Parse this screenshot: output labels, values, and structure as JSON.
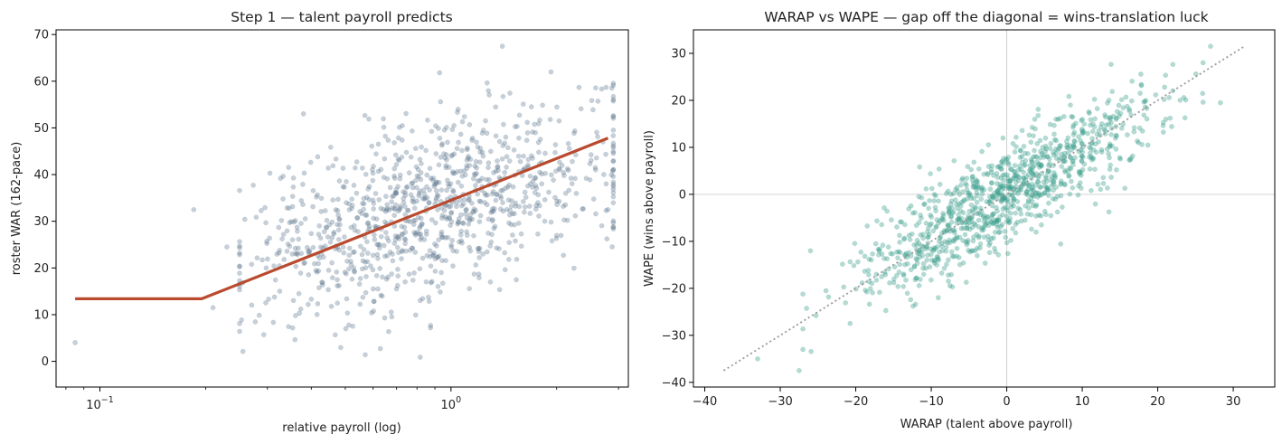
{
  "colors": {
    "left_points": "#5f7890",
    "fit_line": "#b94a2e",
    "right_points": "#3a9e8c",
    "diagonal": "#999999",
    "zero_lines": "#cccccc"
  },
  "chart_data": [
    {
      "type": "scatter",
      "title": "Step 1 — talent payroll predicts",
      "xlabel": "relative payroll (log)",
      "ylabel": "roster WAR (162-pace)",
      "xscale": "log",
      "xlim": [
        0.075,
        3.2
      ],
      "ylim": [
        -5.5,
        71
      ],
      "xticks": [
        {
          "value": 0.1,
          "base": "10",
          "exp": "−1"
        },
        {
          "value": 1,
          "base": "10",
          "exp": "0"
        }
      ],
      "yticks": [
        0,
        10,
        20,
        30,
        40,
        50,
        60,
        70
      ],
      "yticks_text": [
        "0",
        "10",
        "20",
        "30",
        "40",
        "50",
        "60",
        "70"
      ],
      "grid": false,
      "series": [
        {
          "kind": "points",
          "n": 1000,
          "x_center": 0.9,
          "x_spread": 0.5,
          "slope_per_log10": 21.0,
          "intercept": 33.5,
          "noise_sd": 9.5,
          "seed": 7,
          "outliers": [
            [
              0.085,
              4
            ],
            [
              0.185,
              32.5
            ],
            [
              0.23,
              24.5
            ],
            [
              0.21,
              11.5
            ],
            [
              2.8,
              32.5
            ],
            [
              1.4,
              67.5
            ],
            [
              0.38,
              53
            ]
          ]
        },
        {
          "kind": "line",
          "points": [
            [
              0.085,
              13.4
            ],
            [
              0.195,
              13.4
            ],
            [
              2.8,
              47.8
            ]
          ]
        }
      ]
    },
    {
      "type": "scatter",
      "title": "WARAP vs WAPE — gap off the diagonal = wins-translation luck",
      "xlabel": "WARAP (talent above payroll)",
      "ylabel": "WAPE (wins above payroll)",
      "xlim": [
        -41.5,
        35.5
      ],
      "ylim": [
        -41,
        35
      ],
      "xticks": [
        -40,
        -30,
        -20,
        -10,
        0,
        10,
        20,
        30
      ],
      "xticks_text": [
        "−40",
        "−30",
        "−20",
        "−10",
        "0",
        "10",
        "20",
        "30"
      ],
      "yticks": [
        -40,
        -30,
        -20,
        -10,
        0,
        10,
        20,
        30
      ],
      "yticks_text": [
        "−40",
        "−30",
        "−20",
        "−10",
        "0",
        "10",
        "20",
        "30"
      ],
      "grid": false,
      "series": [
        {
          "kind": "points",
          "n": 1000,
          "x_sd": 9.5,
          "slope": 0.93,
          "noise_sd": 5.2,
          "seed": 19,
          "outliers": [
            [
              -33,
              -35
            ],
            [
              -27.5,
              -37.5
            ],
            [
              -26,
              -12
            ],
            [
              27,
              31.5
            ],
            [
              28.3,
              19.5
            ],
            [
              -27,
              -33
            ]
          ]
        },
        {
          "kind": "diagonal",
          "points": [
            [
              -37.5,
              -37.5
            ],
            [
              31.5,
              31.5
            ]
          ]
        }
      ]
    }
  ]
}
